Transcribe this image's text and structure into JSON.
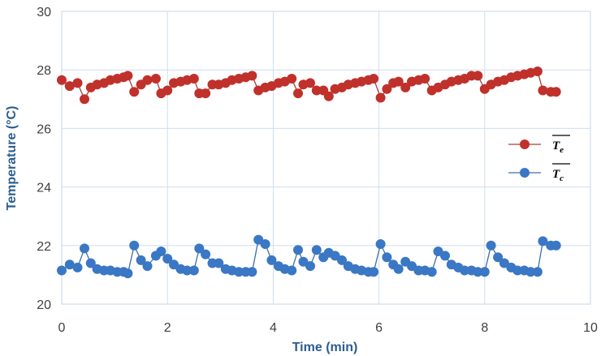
{
  "chart_data": {
    "type": "line",
    "title": "",
    "xlabel": "Time (min)",
    "ylabel": "Temperature (°C)",
    "xlim": [
      0,
      10
    ],
    "ylim": [
      20,
      30
    ],
    "xticks": [
      "0",
      "2",
      "4",
      "6",
      "8",
      "10"
    ],
    "yticks": [
      "20",
      "22",
      "24",
      "26",
      "28",
      "30"
    ],
    "grid": true,
    "legend_position": "right",
    "series": [
      {
        "name": "Te",
        "label_main": "T",
        "label_sub": "e",
        "color": "#c0312b",
        "line_color": "#a0403a",
        "x": [
          0.0,
          0.15,
          0.3,
          0.43,
          0.55,
          0.67,
          0.8,
          0.92,
          1.05,
          1.17,
          1.25,
          1.37,
          1.5,
          1.62,
          1.78,
          1.88,
          2.0,
          2.12,
          2.25,
          2.37,
          2.5,
          2.6,
          2.72,
          2.85,
          2.97,
          3.1,
          3.22,
          3.35,
          3.48,
          3.6,
          3.72,
          3.85,
          3.97,
          4.1,
          4.22,
          4.35,
          4.47,
          4.57,
          4.7,
          4.82,
          4.95,
          5.05,
          5.17,
          5.3,
          5.42,
          5.55,
          5.67,
          5.8,
          5.9,
          6.03,
          6.15,
          6.27,
          6.37,
          6.5,
          6.62,
          6.75,
          6.87,
          7.0,
          7.12,
          7.25,
          7.37,
          7.5,
          7.62,
          7.75,
          7.87,
          8.0,
          8.12,
          8.25,
          8.37,
          8.5,
          8.62,
          8.75,
          8.87,
          9.0,
          9.1,
          9.25,
          9.35
        ],
        "y": [
          27.65,
          27.45,
          27.55,
          27.0,
          27.4,
          27.5,
          27.55,
          27.65,
          27.7,
          27.75,
          27.8,
          27.25,
          27.5,
          27.65,
          27.7,
          27.2,
          27.3,
          27.55,
          27.6,
          27.65,
          27.7,
          27.2,
          27.2,
          27.5,
          27.5,
          27.55,
          27.65,
          27.7,
          27.75,
          27.8,
          27.3,
          27.4,
          27.45,
          27.55,
          27.6,
          27.7,
          27.2,
          27.5,
          27.55,
          27.3,
          27.3,
          27.1,
          27.35,
          27.4,
          27.5,
          27.55,
          27.6,
          27.65,
          27.7,
          27.05,
          27.35,
          27.55,
          27.6,
          27.4,
          27.6,
          27.65,
          27.7,
          27.3,
          27.4,
          27.5,
          27.6,
          27.65,
          27.7,
          27.8,
          27.8,
          27.35,
          27.5,
          27.6,
          27.65,
          27.75,
          27.8,
          27.85,
          27.9,
          27.95,
          27.3,
          27.25,
          27.25
        ]
      },
      {
        "name": "Tc",
        "label_main": "T",
        "label_sub": "c",
        "color": "#3a77c4",
        "line_color": "#3f6fa8",
        "x": [
          0.0,
          0.15,
          0.3,
          0.43,
          0.55,
          0.67,
          0.8,
          0.92,
          1.05,
          1.17,
          1.25,
          1.37,
          1.5,
          1.62,
          1.78,
          1.88,
          2.0,
          2.12,
          2.25,
          2.37,
          2.5,
          2.6,
          2.72,
          2.85,
          2.97,
          3.1,
          3.22,
          3.35,
          3.48,
          3.6,
          3.72,
          3.85,
          3.97,
          4.1,
          4.22,
          4.35,
          4.47,
          4.57,
          4.7,
          4.82,
          4.95,
          5.05,
          5.17,
          5.3,
          5.42,
          5.55,
          5.67,
          5.8,
          5.9,
          6.03,
          6.15,
          6.27,
          6.37,
          6.5,
          6.62,
          6.75,
          6.87,
          7.0,
          7.12,
          7.25,
          7.37,
          7.5,
          7.62,
          7.75,
          7.87,
          8.0,
          8.12,
          8.25,
          8.37,
          8.5,
          8.62,
          8.75,
          8.87,
          9.0,
          9.1,
          9.25,
          9.35
        ],
        "y": [
          21.15,
          21.35,
          21.25,
          21.9,
          21.4,
          21.2,
          21.15,
          21.15,
          21.1,
          21.1,
          21.05,
          22.0,
          21.5,
          21.3,
          21.65,
          21.8,
          21.55,
          21.35,
          21.2,
          21.15,
          21.15,
          21.9,
          21.7,
          21.4,
          21.4,
          21.2,
          21.15,
          21.1,
          21.1,
          21.1,
          22.2,
          22.05,
          21.5,
          21.3,
          21.2,
          21.15,
          21.85,
          21.45,
          21.3,
          21.85,
          21.6,
          21.75,
          21.65,
          21.5,
          21.3,
          21.2,
          21.15,
          21.1,
          21.1,
          22.05,
          21.6,
          21.35,
          21.2,
          21.45,
          21.3,
          21.15,
          21.15,
          21.1,
          21.8,
          21.65,
          21.35,
          21.25,
          21.15,
          21.15,
          21.1,
          21.1,
          22.0,
          21.6,
          21.4,
          21.25,
          21.15,
          21.15,
          21.1,
          21.1,
          22.15,
          22.0,
          22.0
        ]
      }
    ]
  }
}
